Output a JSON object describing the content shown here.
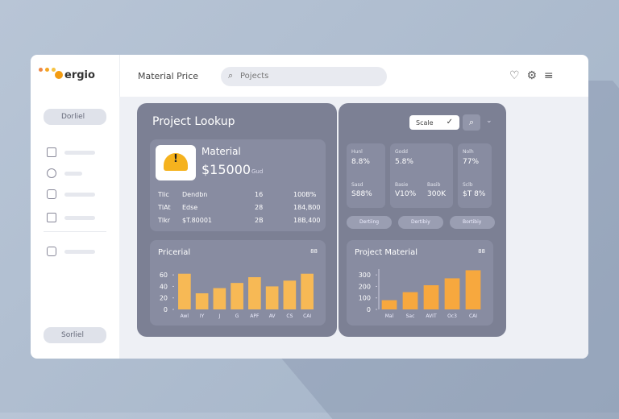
{
  "sidebar": {
    "logo": "ergio",
    "top_button": "Dorliel",
    "bottom_button": "Sorliel"
  },
  "topbar": {
    "title": "Material Price",
    "search_placeholder": "Pojects"
  },
  "lookup": {
    "title": "Project Lookup",
    "card": {
      "label": "Material",
      "price": "$15000",
      "unit": "Gud"
    },
    "rows": [
      [
        "Tlic",
        "Dendbn",
        "16",
        "100B%"
      ],
      [
        "TlAt",
        "Edse",
        "28",
        "184,B00"
      ],
      [
        "Tlkr",
        "$T.80001",
        "2B",
        "18B,400"
      ]
    ]
  },
  "filter": {
    "select": "Scale"
  },
  "stats": [
    {
      "top_label": "Hunl",
      "top_value": "8.8%",
      "bottom": [
        {
          "label": "Sasd",
          "value": "S88%"
        }
      ]
    },
    {
      "top_label": "Godd",
      "top_value": "5.8%",
      "bottom": [
        {
          "label": "Basie",
          "value": "V10%"
        },
        {
          "label": "Basib",
          "value": "300K"
        }
      ]
    },
    {
      "top_label": "Nolh",
      "top_value": "77%",
      "bottom": [
        {
          "label": "Sclb",
          "value": "$T 8%"
        }
      ]
    }
  ],
  "pills": [
    "Dertiing",
    "Dertibiy",
    "Bortibiy"
  ],
  "charts": [
    {
      "type": "bar",
      "title": "Pricerial",
      "badge": "88",
      "color": "#f7b955",
      "categories": [
        "Awl",
        "IY",
        "J",
        "G",
        "APF",
        "AV",
        "CS",
        "CAI"
      ],
      "values": [
        62,
        28,
        37,
        46,
        56,
        40,
        50,
        62
      ],
      "ylim": [
        0,
        70
      ],
      "yticks": [
        0,
        20,
        40,
        60
      ]
    },
    {
      "type": "bar",
      "title": "Project Material",
      "badge": "88",
      "color": "#f7a83e",
      "categories": [
        "Mal",
        "Sac",
        "AVIT",
        "Oc3",
        "CAI"
      ],
      "values": [
        80,
        150,
        210,
        270,
        340
      ],
      "ylim": [
        0,
        350
      ],
      "yticks": [
        0,
        100,
        200,
        300
      ]
    }
  ]
}
